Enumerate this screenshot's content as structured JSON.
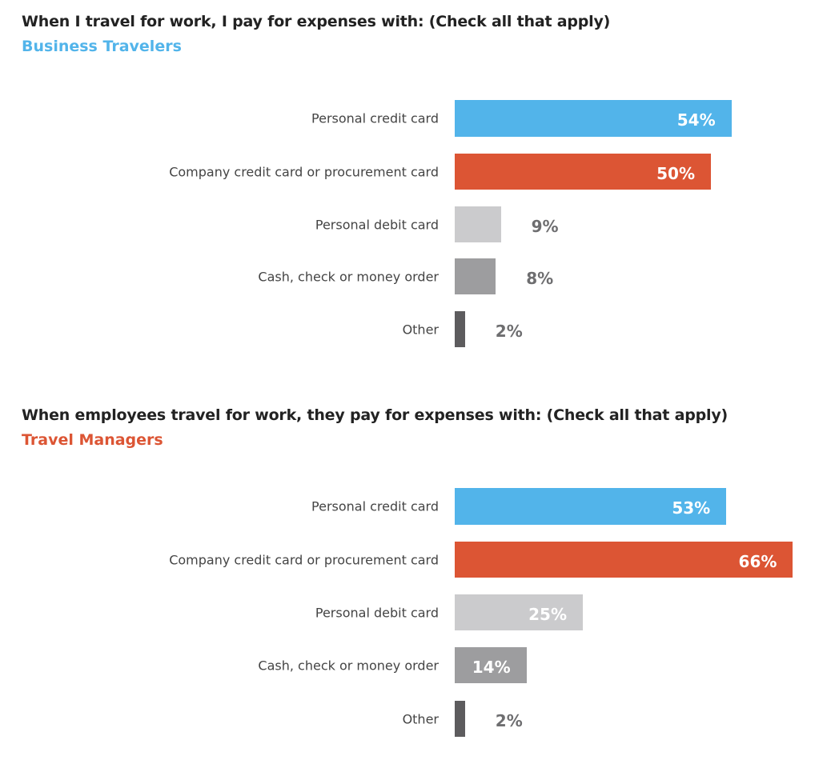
{
  "chart_data": [
    {
      "type": "bar",
      "orientation": "horizontal",
      "title": "When I travel for work, I pay for expenses with: (Check all that apply)",
      "subtitle": "Business Travelers",
      "subtitle_color": "#52b4ea",
      "categories": [
        "Personal credit card",
        "Company credit card or procurement card",
        "Personal debit card",
        "Cash, check or money order",
        "Other"
      ],
      "values": [
        54,
        50,
        9,
        8,
        2
      ],
      "labels": [
        "54%",
        "50%",
        "9%",
        "8%",
        "2%"
      ],
      "unit": "%",
      "xlim": [
        0,
        100
      ]
    },
    {
      "type": "bar",
      "orientation": "horizontal",
      "title": "When employees travel for work, they pay for expenses with: (Check all that apply)",
      "subtitle": "Travel Managers",
      "subtitle_color": "#dc5534",
      "categories": [
        "Personal credit card",
        "Company credit card or procurement card",
        "Personal debit card",
        "Cash, check or money order",
        "Other"
      ],
      "values": [
        53,
        66,
        25,
        14,
        2
      ],
      "labels": [
        "53%",
        "66%",
        "25%",
        "14%",
        "2%"
      ],
      "unit": "%",
      "xlim": [
        0,
        100
      ]
    }
  ],
  "bar_colors": [
    "#52b4ea",
    "#dc5534",
    "#cbcbcd",
    "#9d9d9f",
    "#5d5c5e"
  ]
}
